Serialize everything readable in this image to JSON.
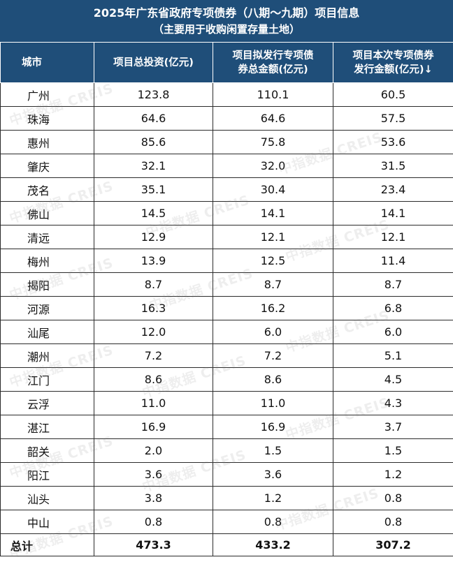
{
  "title": {
    "line1": "2025年广东省政府专项债券（八期～九期）项目信息",
    "line2": "（主要用于收购闲置存量土地）"
  },
  "headers": {
    "city": "城市",
    "total_investment": "项目总投资(亿元)",
    "planned_issue_line1": "项目拟发行专项债",
    "planned_issue_line2": "券总金额(亿元)",
    "current_issue_line1": "项目本次专项债券",
    "current_issue_line2": "发行金额(亿元)↓"
  },
  "rows": [
    {
      "city": "广州",
      "total": "123.8",
      "planned": "110.1",
      "current": "60.5"
    },
    {
      "city": "珠海",
      "total": "64.6",
      "planned": "64.6",
      "current": "57.5"
    },
    {
      "city": "惠州",
      "total": "85.6",
      "planned": "75.8",
      "current": "53.6"
    },
    {
      "city": "肇庆",
      "total": "32.1",
      "planned": "32.0",
      "current": "31.5"
    },
    {
      "city": "茂名",
      "total": "35.1",
      "planned": "30.4",
      "current": "23.4"
    },
    {
      "city": "佛山",
      "total": "14.5",
      "planned": "14.1",
      "current": "14.1"
    },
    {
      "city": "清远",
      "total": "12.9",
      "planned": "12.1",
      "current": "12.1"
    },
    {
      "city": "梅州",
      "total": "13.9",
      "planned": "12.5",
      "current": "11.4"
    },
    {
      "city": "揭阳",
      "total": "8.7",
      "planned": "8.7",
      "current": "8.7"
    },
    {
      "city": "河源",
      "total": "16.3",
      "planned": "16.2",
      "current": "6.8"
    },
    {
      "city": "汕尾",
      "total": "12.0",
      "planned": "6.0",
      "current": "6.0"
    },
    {
      "city": "潮州",
      "total": "7.2",
      "planned": "7.2",
      "current": "5.1"
    },
    {
      "city": "江门",
      "total": "8.6",
      "planned": "8.6",
      "current": "4.5"
    },
    {
      "city": "云浮",
      "total": "11.0",
      "planned": "11.0",
      "current": "4.3"
    },
    {
      "city": "湛江",
      "total": "16.9",
      "planned": "16.9",
      "current": "3.7"
    },
    {
      "city": "韶关",
      "total": "2.0",
      "planned": "1.5",
      "current": "1.5"
    },
    {
      "city": "阳江",
      "total": "3.6",
      "planned": "3.6",
      "current": "1.2"
    },
    {
      "city": "汕头",
      "total": "3.8",
      "planned": "1.2",
      "current": "0.8"
    },
    {
      "city": "中山",
      "total": "0.8",
      "planned": "0.8",
      "current": "0.8"
    }
  ],
  "total_row": {
    "city": "总计",
    "total": "473.3",
    "planned": "433.2",
    "current": "307.2"
  },
  "watermark": "中指数据 CREIS",
  "colors": {
    "header_bg": "#1f4e79",
    "header_text": "#ffffff",
    "border": "#2b2b2b"
  }
}
